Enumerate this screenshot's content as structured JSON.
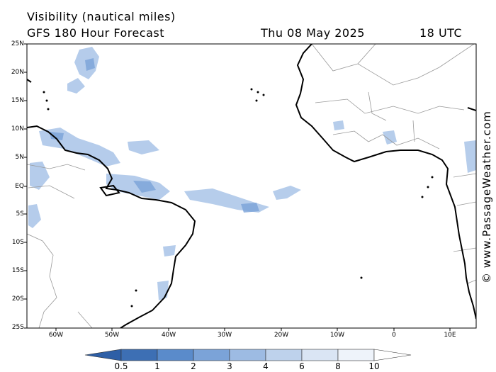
{
  "title": {
    "line1": "Visibility (nautical miles)",
    "model": "GFS 180 Hour Forecast",
    "date": "Thu 08 May 2025",
    "time": "18 UTC"
  },
  "lat_labels": [
    "25N",
    "20N",
    "15N",
    "10N",
    "5N",
    "EQ",
    "5S",
    "10S",
    "15S",
    "20S",
    "25S"
  ],
  "lon_labels": [
    "60W",
    "50W",
    "40W",
    "30W",
    "20W",
    "10W",
    "0",
    "10E"
  ],
  "colorbar": {
    "ticks": [
      "0.5",
      "1",
      "2",
      "3",
      "4",
      "6",
      "8",
      "10"
    ],
    "colors": [
      "#3d6fb4",
      "#5a8bcb",
      "#7ba3d8",
      "#9dbbe3",
      "#bed2ec",
      "#dae5f4",
      "#eef3fa"
    ]
  },
  "copyright": "© www.PassageWeather.com",
  "colors": {
    "land_border": "#999999",
    "coast": "#000000",
    "frame": "#000000"
  }
}
